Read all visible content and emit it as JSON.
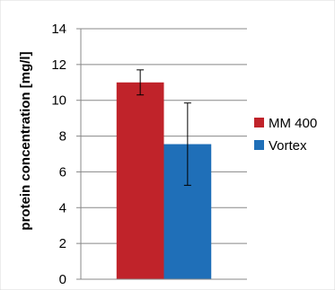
{
  "chart_data": {
    "type": "bar",
    "categories": [
      ""
    ],
    "series": [
      {
        "name": "MM 400",
        "values": [
          11.0
        ],
        "error": [
          0.7
        ],
        "color": "#c0232a"
      },
      {
        "name": "Vortex",
        "values": [
          7.55
        ],
        "error": [
          2.3
        ],
        "color": "#1f6fb8"
      }
    ],
    "xlabel": "",
    "ylabel": "protein concentration [mg/l]",
    "ylim": [
      0,
      14
    ],
    "yticks": [
      0,
      2,
      4,
      6,
      8,
      10,
      12,
      14
    ],
    "grid": true,
    "legend": "right"
  }
}
